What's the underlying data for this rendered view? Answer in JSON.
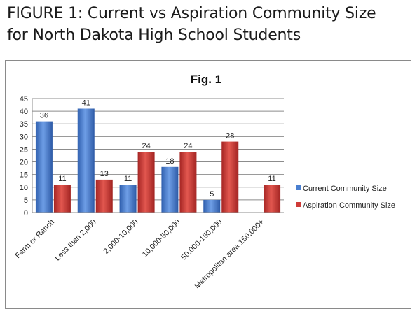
{
  "heading": {
    "line1": "FIGURE 1: Current vs Aspiration Community Size",
    "line2": "for North Dakota High School Students"
  },
  "chart_data": {
    "type": "bar",
    "title": "Fig. 1",
    "categories": [
      "Farm or Ranch",
      "Less than 2,000",
      "2,000-10,000",
      "10,000-50,000",
      "50,000-150,000",
      "Metropolitan area 150,000+"
    ],
    "series": [
      {
        "name": "Current Community Size",
        "values": [
          36,
          41,
          11,
          18,
          5,
          null
        ],
        "color": "#4a7fd0"
      },
      {
        "name": "Aspiration Community Size",
        "values": [
          11,
          13,
          24,
          24,
          28,
          11
        ],
        "color": "#cf3b38"
      }
    ],
    "ylim": [
      0,
      45
    ],
    "yticks": [
      0,
      5,
      10,
      15,
      20,
      25,
      30,
      35,
      40,
      45
    ],
    "grid": true,
    "legend": "right",
    "xlabel": "",
    "ylabel": ""
  }
}
